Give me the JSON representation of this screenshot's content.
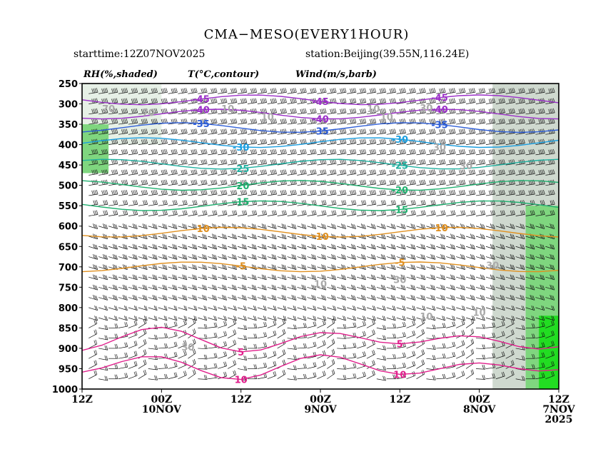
{
  "title": "CMA−MESO(EVERY1HOUR)",
  "starttime": "starttime:12Z07NOV2025",
  "station": "station:Beijing(39.55N,116.24E)",
  "legend": {
    "rh": "RH(%,shaded)",
    "temp": "T(°C,contour)",
    "wind": "Wind(m/s,barb)"
  },
  "chart_data": {
    "type": "heatmap",
    "title": "CMA−MESO(EVERY1HOUR)",
    "xlabel": "",
    "ylabel": "",
    "y_axis": {
      "reversed": true,
      "ylim": [
        1000,
        250
      ],
      "ticks": [
        250,
        300,
        350,
        400,
        450,
        500,
        550,
        600,
        650,
        700,
        750,
        800,
        850,
        900,
        950,
        1000
      ]
    },
    "x_axis": {
      "reversed": true,
      "xlim_hours_since_start": [
        72,
        0
      ],
      "ticks": [
        {
          "hour": 72,
          "lines": [
            "12Z"
          ]
        },
        {
          "hour": 60,
          "lines": [
            "00Z",
            "10NOV"
          ]
        },
        {
          "hour": 48,
          "lines": [
            "12Z"
          ]
        },
        {
          "hour": 36,
          "lines": [
            "00Z",
            "9NOV"
          ]
        },
        {
          "hour": 24,
          "lines": [
            "12Z"
          ]
        },
        {
          "hour": 12,
          "lines": [
            "00Z",
            "8NOV"
          ]
        },
        {
          "hour": 0,
          "lines": [
            "12Z",
            "7NOV",
            "2025"
          ]
        }
      ]
    },
    "rh_shading": {
      "levels_percent": [
        70,
        80,
        90,
        100
      ],
      "colors": [
        "#e6f0e6",
        "#cfd9cf",
        "#7fd67f",
        "#22dd22"
      ],
      "regions": [
        {
          "level": 70,
          "hours": [
            72,
            60
          ],
          "p": [
            400,
            250
          ]
        },
        {
          "level": 90,
          "hours": [
            72,
            68
          ],
          "p": [
            470,
            350
          ]
        },
        {
          "level": 80,
          "hours": [
            10,
            0
          ],
          "p": [
            1000,
            250
          ]
        },
        {
          "level": 90,
          "hours": [
            5,
            0
          ],
          "p": [
            1000,
            550
          ]
        },
        {
          "level": 100,
          "hours": [
            3,
            0
          ],
          "p": [
            1000,
            820
          ]
        }
      ]
    },
    "temperature_contours": [
      {
        "value": -45,
        "color": "#9b30c8",
        "labels": [
          "-45",
          "-45",
          "-45"
        ]
      },
      {
        "value": -40,
        "color": "#9b30c8",
        "labels": [
          "-40",
          "-40",
          "-40"
        ]
      },
      {
        "value": -35,
        "color": "#2f5fd8",
        "labels": [
          "-35",
          "-35",
          "-35"
        ]
      },
      {
        "value": -30,
        "color": "#1a9ee0",
        "labels": [
          "-30",
          "-30"
        ]
      },
      {
        "value": -25,
        "color": "#20b0a0",
        "labels": [
          "-25",
          "-25"
        ]
      },
      {
        "value": -20,
        "color": "#20b070",
        "labels": [
          "-20",
          "-20"
        ]
      },
      {
        "value": -15,
        "color": "#20b070",
        "labels": [
          "-15",
          "-15"
        ]
      },
      {
        "value": -10,
        "color": "#e09020",
        "labels": [
          "-10",
          "-10",
          "-10"
        ]
      },
      {
        "value": -5,
        "color": "#e09020",
        "labels": [
          "-5",
          "-5"
        ]
      },
      {
        "value": 5,
        "color": "#e0208c",
        "labels": [
          "5",
          "5"
        ]
      },
      {
        "value": 10,
        "color": "#e0208c",
        "labels": [
          "10",
          "10"
        ]
      }
    ],
    "rh_contour_labels": [
      "70",
      "70",
      "10",
      "10",
      "30",
      "30",
      "30",
      "30",
      "10",
      "10",
      "30",
      "30",
      "10",
      "10",
      "10"
    ]
  }
}
